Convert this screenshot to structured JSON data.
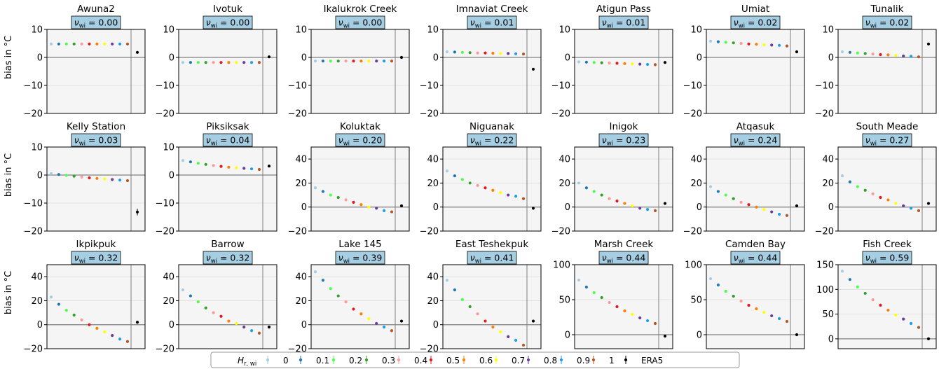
{
  "y_axis_label": "bias in °C",
  "nu_symbol": "ν",
  "nu_subscript": "wi",
  "panel_bg_color": "#f5f5f5",
  "badge_color": "#a6cee3",
  "legend": {
    "title_symbol": "H",
    "title_subscript": "r, wi",
    "entries": [
      {
        "label": "0",
        "color": "#a6cee3"
      },
      {
        "label": "0.1",
        "color": "#1f78b4"
      },
      {
        "label": "0.2",
        "color": "#4dff4d"
      },
      {
        "label": "0.3",
        "color": "#33a02c"
      },
      {
        "label": "0.4",
        "color": "#fb9a99"
      },
      {
        "label": "0.5",
        "color": "#e31a1c"
      },
      {
        "label": "0.6",
        "color": "#ff7f00"
      },
      {
        "label": "0.7",
        "color": "#ffff00"
      },
      {
        "label": "0.8",
        "color": "#6a3d9a"
      },
      {
        "label": "0.9",
        "color": "#1f9ee8"
      },
      {
        "label": "1",
        "color": "#b15928"
      },
      {
        "label": "ERA5",
        "color": "#000000"
      }
    ]
  },
  "chart_data": [
    {
      "type": "scatter",
      "title": "Awuna2",
      "nu_wi": "0.00",
      "ylim": [
        -20,
        10
      ],
      "yticks": [
        -20,
        -10,
        0,
        10
      ],
      "values": [
        4.8,
        4.8,
        4.8,
        4.8,
        4.8,
        4.8,
        4.8,
        4.8,
        4.8,
        4.8,
        4.8
      ],
      "era5": 1.8
    },
    {
      "type": "scatter",
      "title": "Ivotuk",
      "nu_wi": "0.00",
      "ylim": [
        -20,
        10
      ],
      "yticks": [
        -20,
        -10,
        0,
        10
      ],
      "values": [
        -1.8,
        -1.8,
        -1.8,
        -1.8,
        -1.8,
        -1.8,
        -1.8,
        -1.8,
        -1.8,
        -1.8,
        -1.8
      ],
      "era5": 0.2
    },
    {
      "type": "scatter",
      "title": "Ikalukrok Creek",
      "nu_wi": "0.00",
      "ylim": [
        -20,
        10
      ],
      "yticks": [
        -20,
        -10,
        0,
        10
      ],
      "values": [
        -1.3,
        -1.3,
        -1.3,
        -1.3,
        -1.3,
        -1.3,
        -1.3,
        -1.3,
        -1.3,
        -1.3,
        -1.3
      ],
      "era5": 0.0
    },
    {
      "type": "scatter",
      "title": "Imnaviat Creek",
      "nu_wi": "0.01",
      "ylim": [
        -20,
        10
      ],
      "yticks": [
        -20,
        -10,
        0,
        10
      ],
      "values": [
        2.0,
        1.9,
        1.8,
        1.7,
        1.6,
        1.6,
        1.5,
        1.4,
        1.4,
        1.3,
        1.2
      ],
      "era5": -4.2
    },
    {
      "type": "scatter",
      "title": "Atigun Pass",
      "nu_wi": "0.01",
      "ylim": [
        -20,
        10
      ],
      "yticks": [
        -20,
        -10,
        0,
        10
      ],
      "values": [
        -1.6,
        -1.7,
        -1.8,
        -1.9,
        -2.0,
        -2.1,
        -2.2,
        -2.3,
        -2.4,
        -2.5,
        -2.6
      ],
      "era5": -1.8
    },
    {
      "type": "scatter",
      "title": "Umiat",
      "nu_wi": "0.02",
      "ylim": [
        -20,
        10
      ],
      "yticks": [
        -20,
        -10,
        0,
        10
      ],
      "values": [
        5.8,
        5.6,
        5.4,
        5.2,
        5.0,
        4.8,
        4.7,
        4.5,
        4.4,
        4.3,
        4.1
      ],
      "era5": 2.0
    },
    {
      "type": "scatter",
      "title": "Tunalik",
      "nu_wi": "0.02",
      "ylim": [
        -20,
        10
      ],
      "yticks": [
        -20,
        -10,
        0,
        10
      ],
      "values": [
        2.0,
        1.8,
        1.6,
        1.4,
        1.2,
        1.0,
        0.9,
        0.7,
        0.5,
        0.4,
        0.2
      ],
      "era5": 4.8
    },
    {
      "type": "scatter",
      "title": "Kelly Station",
      "nu_wi": "0.03",
      "ylim": [
        -20,
        10
      ],
      "yticks": [
        -20,
        -10,
        0,
        10
      ],
      "values": [
        0.5,
        0.2,
        -0.1,
        -0.4,
        -0.7,
        -1.0,
        -1.2,
        -1.4,
        -1.6,
        -1.8,
        -2.0
      ],
      "era5": -13.2,
      "era5_err": 1.2
    },
    {
      "type": "scatter",
      "title": "Piksiksak",
      "nu_wi": "0.04",
      "ylim": [
        -20,
        10
      ],
      "yticks": [
        -20,
        -10,
        0,
        10
      ],
      "values": [
        5.2,
        4.7,
        4.2,
        3.8,
        3.4,
        3.1,
        2.8,
        2.6,
        2.4,
        2.2,
        2.0
      ],
      "era5": 3.2
    },
    {
      "type": "scatter",
      "title": "Koluktak",
      "nu_wi": "0.20",
      "ylim": [
        -20,
        50
      ],
      "yticks": [
        -20,
        0,
        20,
        40
      ],
      "values": [
        16,
        13,
        10,
        8,
        6,
        4,
        2,
        0,
        -1,
        -3,
        -4
      ],
      "era5": 1.0
    },
    {
      "type": "scatter",
      "title": "Niguanak",
      "nu_wi": "0.22",
      "ylim": [
        -20,
        50
      ],
      "yticks": [
        -20,
        0,
        20,
        40
      ],
      "values": [
        30,
        26,
        23,
        20,
        18,
        16,
        14,
        12,
        10,
        9,
        7
      ],
      "era5": -1.0
    },
    {
      "type": "scatter",
      "title": "Inigok",
      "nu_wi": "0.23",
      "ylim": [
        -20,
        50
      ],
      "yticks": [
        -20,
        0,
        20,
        40
      ],
      "values": [
        20,
        16,
        13,
        10,
        7,
        5,
        3,
        1,
        -1,
        -2,
        -3
      ],
      "era5": 3.0
    },
    {
      "type": "scatter",
      "title": "Atqasuk",
      "nu_wi": "0.24",
      "ylim": [
        -20,
        50
      ],
      "yticks": [
        -20,
        0,
        20,
        40
      ],
      "values": [
        17,
        13,
        10,
        7,
        4,
        2,
        0,
        -2,
        -4,
        -6,
        -7
      ],
      "era5": 1.0
    },
    {
      "type": "scatter",
      "title": "South Meade",
      "nu_wi": "0.27",
      "ylim": [
        -20,
        50
      ],
      "yticks": [
        -20,
        0,
        20,
        40
      ],
      "values": [
        26,
        21,
        17,
        14,
        11,
        8,
        6,
        3,
        1,
        -1,
        -3
      ],
      "era5": 3.0
    },
    {
      "type": "scatter",
      "title": "Ikpikpuk",
      "nu_wi": "0.32",
      "ylim": [
        -20,
        50
      ],
      "yticks": [
        -20,
        0,
        20,
        40
      ],
      "values": [
        23,
        17,
        12,
        8,
        4,
        0,
        -3,
        -6,
        -9,
        -12,
        -14
      ],
      "era5": 2.0
    },
    {
      "type": "scatter",
      "title": "Barrow",
      "nu_wi": "0.32",
      "ylim": [
        -20,
        50
      ],
      "yticks": [
        -20,
        0,
        20,
        40
      ],
      "values": [
        29,
        24,
        19,
        14,
        10,
        7,
        3,
        1,
        -2,
        -5,
        -7
      ],
      "era5": -2.0
    },
    {
      "type": "scatter",
      "title": "Lake 145",
      "nu_wi": "0.39",
      "ylim": [
        -20,
        50
      ],
      "yticks": [
        -20,
        0,
        20,
        40
      ],
      "values": [
        44,
        37,
        30,
        24,
        19,
        13,
        9,
        5,
        1,
        -2,
        -5
      ],
      "era5": 3.0
    },
    {
      "type": "scatter",
      "title": "East Teshekpuk",
      "nu_wi": "0.41",
      "ylim": [
        -20,
        50
      ],
      "yticks": [
        -20,
        0,
        20,
        40
      ],
      "values": [
        37,
        29,
        21,
        15,
        9,
        3,
        -2,
        -6,
        -10,
        -13,
        -17
      ],
      "era5": 3.0
    },
    {
      "type": "scatter",
      "title": "Marsh Creek",
      "nu_wi": "0.44",
      "ylim": [
        -20,
        100
      ],
      "yticks": [
        0,
        50,
        100
      ],
      "values": [
        78,
        68,
        60,
        53,
        46,
        40,
        34,
        29,
        24,
        20,
        16
      ],
      "era5": -2.0
    },
    {
      "type": "scatter",
      "title": "Camden Bay",
      "nu_wi": "0.44",
      "ylim": [
        -20,
        100
      ],
      "yticks": [
        0,
        50,
        100
      ],
      "values": [
        80,
        71,
        62,
        55,
        48,
        42,
        37,
        32,
        27,
        23,
        19
      ],
      "era5": 0.0
    },
    {
      "type": "scatter",
      "title": "Fish Creek",
      "nu_wi": "0.59",
      "ylim": [
        -20,
        150
      ],
      "yticks": [
        0,
        50,
        100,
        150
      ],
      "values": [
        137,
        120,
        105,
        92,
        79,
        68,
        58,
        48,
        40,
        31,
        23
      ],
      "era5": 0.0
    }
  ]
}
